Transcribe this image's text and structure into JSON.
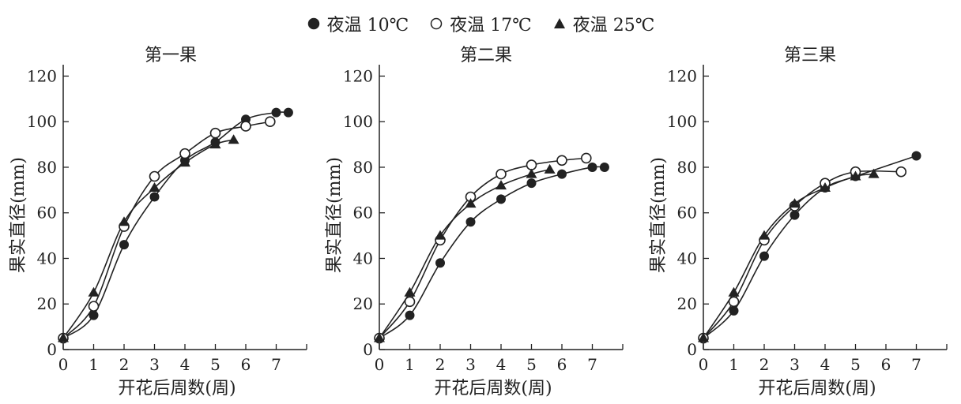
{
  "legend": [
    {
      "marker": "filled-circle",
      "label": "夜温 10℃"
    },
    {
      "marker": "open-circle",
      "label": "夜温 17℃"
    },
    {
      "marker": "filled-triangle",
      "label": "夜温 25℃"
    }
  ],
  "colors": {
    "ink": "#222222",
    "background": "#ffffff"
  },
  "chart_data": [
    {
      "type": "line",
      "title": "第一果",
      "xlabel": "开花后周数(周)",
      "ylabel": "果实直径(mm)",
      "xlim": [
        0,
        7.7
      ],
      "ylim": [
        0,
        125
      ],
      "xticks": [
        0,
        1,
        2,
        3,
        4,
        5,
        6,
        7
      ],
      "yticks": [
        0,
        20,
        40,
        60,
        80,
        100,
        120
      ],
      "series": [
        {
          "name": "夜温 10℃",
          "marker": "filled-circle",
          "x": [
            0,
            1,
            2,
            3,
            4,
            5,
            6,
            7,
            7.4
          ],
          "y": [
            5,
            15,
            46,
            67,
            83,
            91,
            101,
            104,
            104
          ]
        },
        {
          "name": "夜温 17℃",
          "marker": "open-circle",
          "x": [
            0,
            1,
            2,
            3,
            4,
            5,
            6,
            6.8
          ],
          "y": [
            5,
            19,
            54,
            76,
            86,
            95,
            98,
            100
          ]
        },
        {
          "name": "夜温 25℃",
          "marker": "filled-triangle",
          "x": [
            0,
            1,
            2,
            3,
            4,
            5,
            5.6
          ],
          "y": [
            5,
            25,
            56,
            71,
            82,
            90,
            92
          ]
        }
      ]
    },
    {
      "type": "line",
      "title": "第二果",
      "xlabel": "开花后周数(周)",
      "ylabel": "果实直径(mm)",
      "xlim": [
        0,
        7.7
      ],
      "ylim": [
        0,
        125
      ],
      "xticks": [
        0,
        1,
        2,
        3,
        4,
        5,
        6,
        7
      ],
      "yticks": [
        0,
        20,
        40,
        60,
        80,
        100,
        120
      ],
      "series": [
        {
          "name": "夜温 10℃",
          "marker": "filled-circle",
          "x": [
            0,
            1,
            2,
            3,
            4,
            5,
            6,
            7,
            7.4
          ],
          "y": [
            5,
            15,
            38,
            56,
            66,
            73,
            77,
            80,
            80
          ]
        },
        {
          "name": "夜温 17℃",
          "marker": "open-circle",
          "x": [
            0,
            1,
            2,
            3,
            4,
            5,
            6,
            6.8
          ],
          "y": [
            5,
            21,
            48,
            67,
            77,
            81,
            83,
            84
          ]
        },
        {
          "name": "夜温 25℃",
          "marker": "filled-triangle",
          "x": [
            0,
            1,
            2,
            3,
            4,
            5,
            5.6
          ],
          "y": [
            5,
            25,
            50,
            64,
            72,
            77,
            79
          ]
        }
      ]
    },
    {
      "type": "line",
      "title": "第三果",
      "xlabel": "开花后周数(周)",
      "ylabel": "果实直径(mm)",
      "xlim": [
        0,
        7.7
      ],
      "ylim": [
        0,
        125
      ],
      "xticks": [
        0,
        1,
        2,
        3,
        4,
        5,
        6,
        7
      ],
      "yticks": [
        0,
        20,
        40,
        60,
        80,
        100,
        120
      ],
      "series": [
        {
          "name": "夜温 10℃",
          "marker": "filled-circle",
          "x": [
            0,
            1,
            2,
            3,
            4,
            5,
            7
          ],
          "y": [
            5,
            17,
            41,
            59,
            71,
            76,
            85
          ]
        },
        {
          "name": "夜温 17℃",
          "marker": "open-circle",
          "x": [
            0,
            1,
            2,
            3,
            4,
            5,
            6.5
          ],
          "y": [
            5,
            21,
            48,
            63,
            73,
            78,
            78
          ]
        },
        {
          "name": "夜温 25℃",
          "marker": "filled-triangle",
          "x": [
            0,
            1,
            2,
            3,
            4,
            5,
            5.6
          ],
          "y": [
            5,
            25,
            50,
            64,
            71,
            76,
            77
          ]
        }
      ]
    }
  ]
}
